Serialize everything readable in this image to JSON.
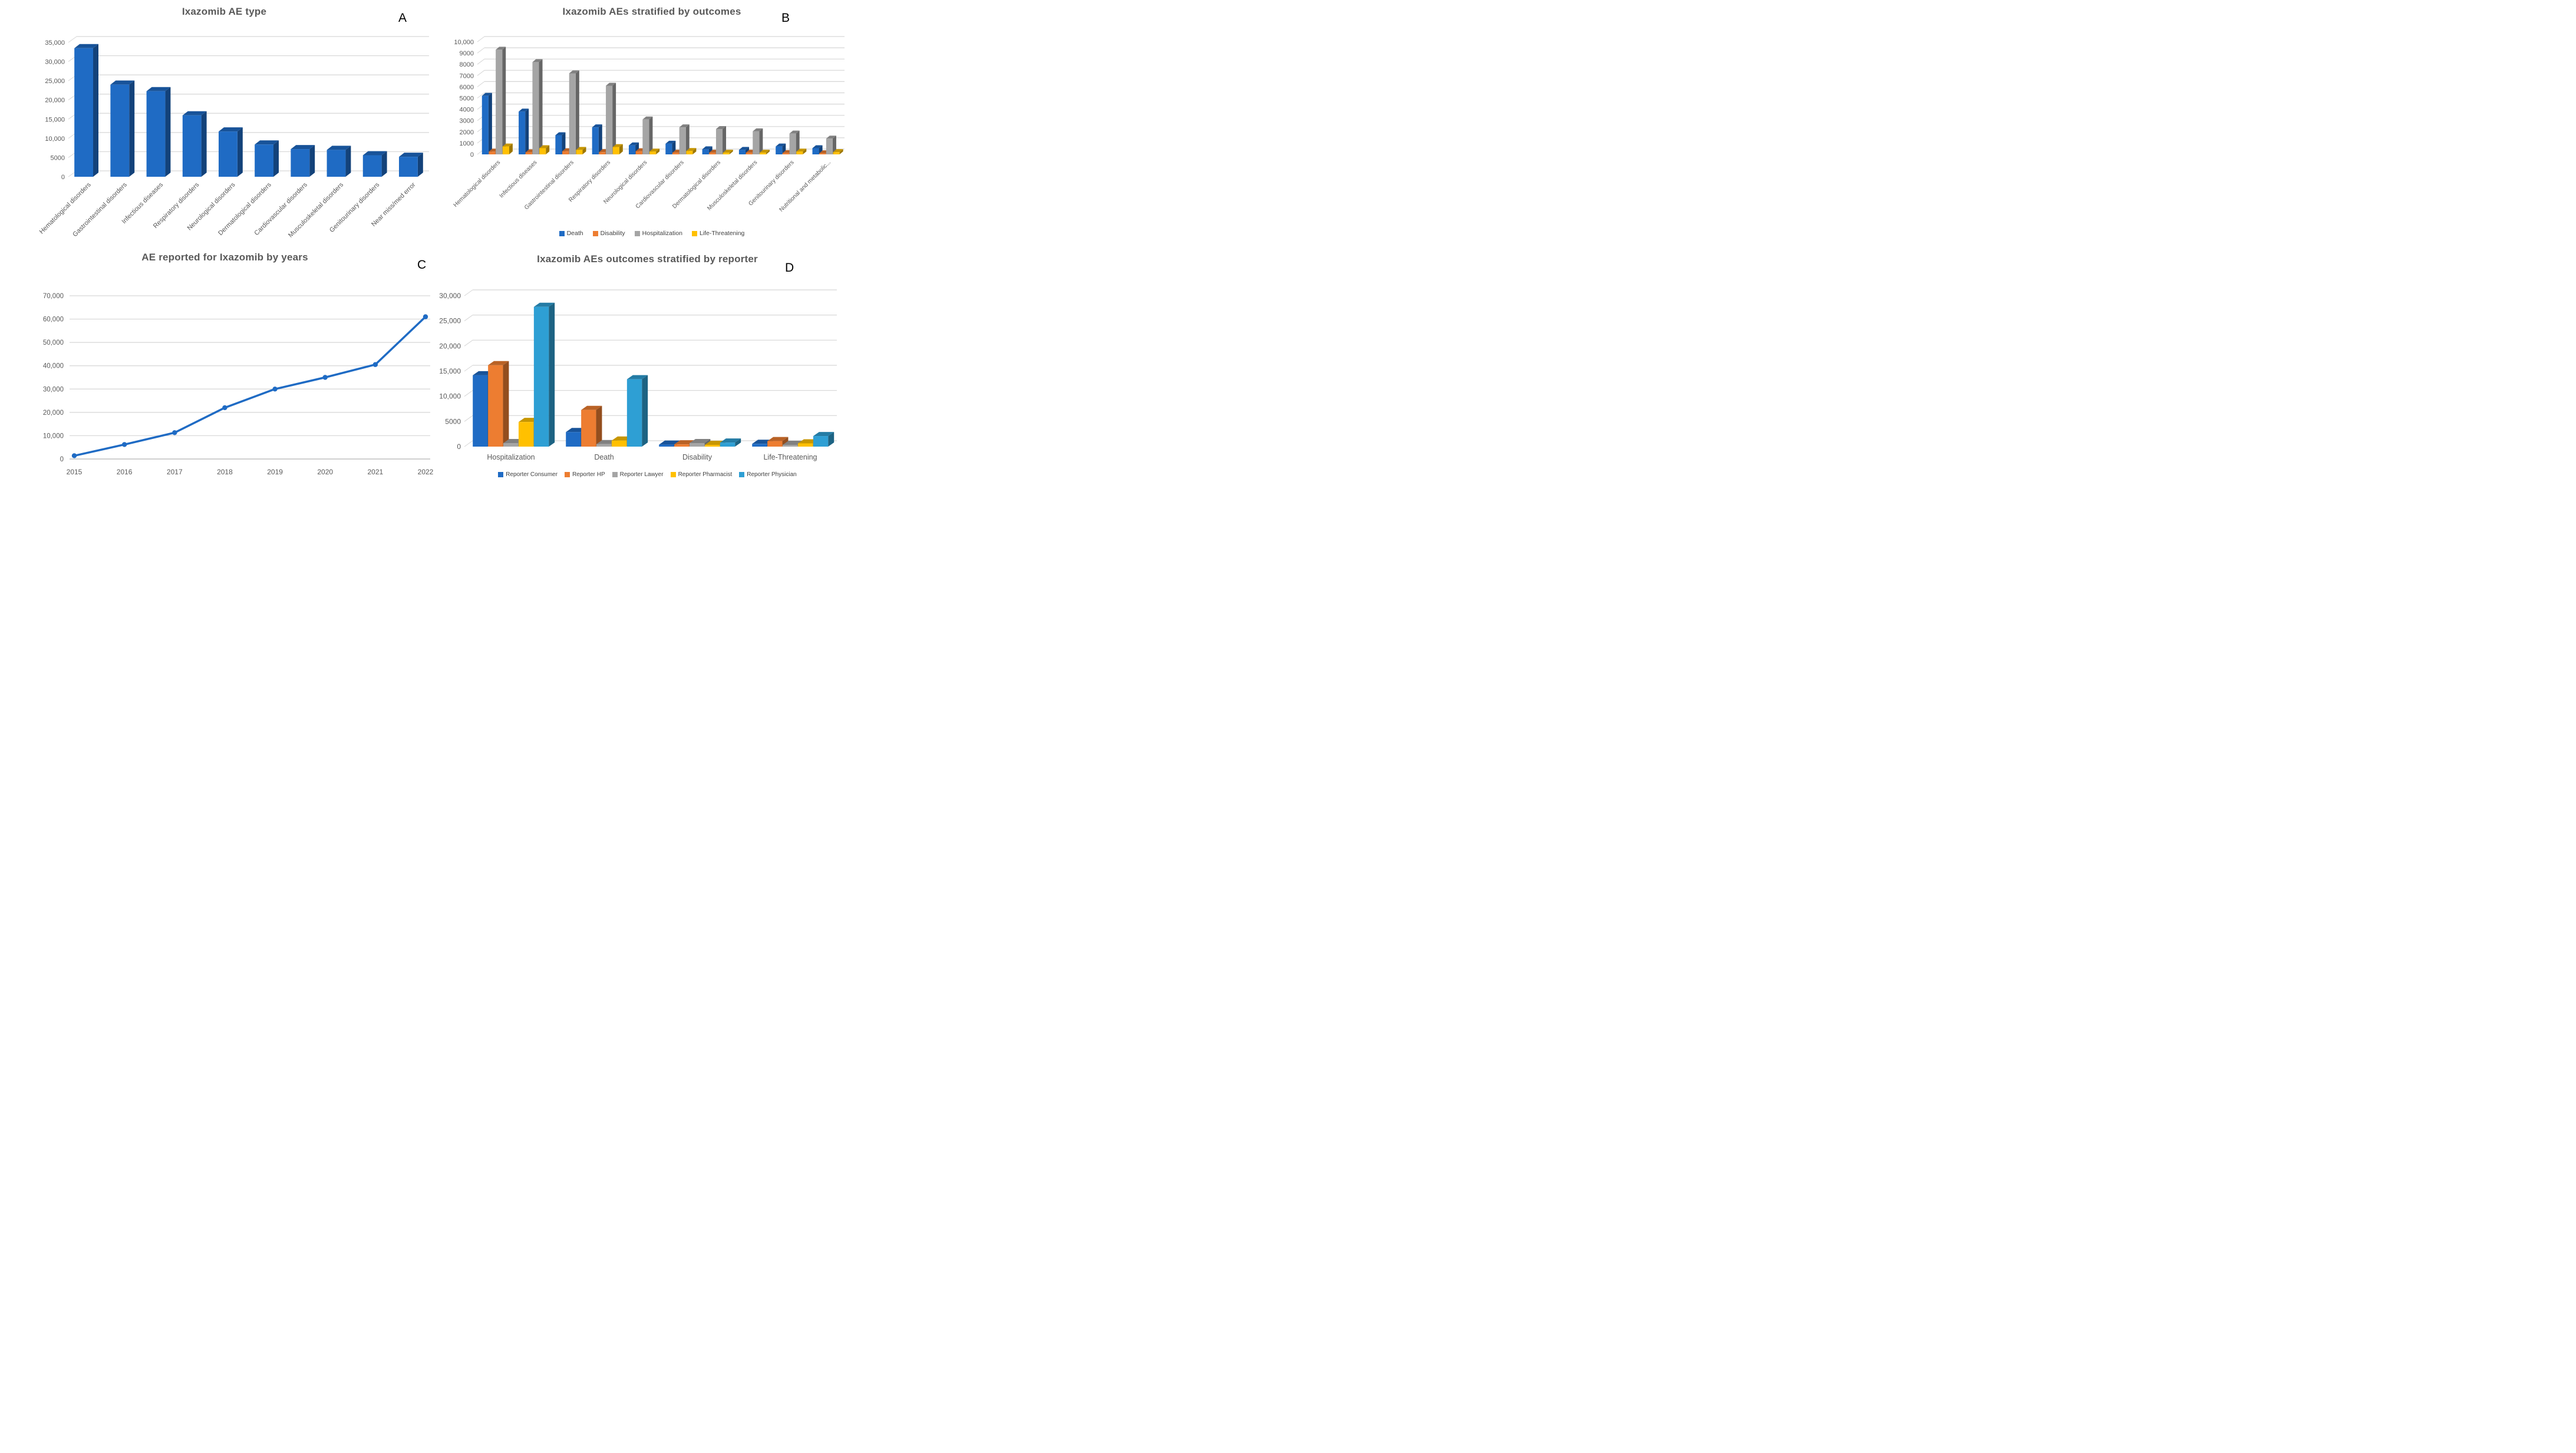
{
  "figure": {
    "background": "#FFFFFF",
    "panels": [
      {
        "id": "a",
        "letter": "A"
      },
      {
        "id": "b",
        "letter": "B"
      },
      {
        "id": "c",
        "letter": "C"
      },
      {
        "id": "d",
        "letter": "D"
      }
    ]
  },
  "colors": {
    "bar_blue": "#1F6BC4",
    "orange": "#ED7D31",
    "gray": "#A5A5A5",
    "yellow": "#FFC000",
    "light_blue": "#2E9FD4",
    "grid": "#D6D6D6",
    "axis_text": "#595959",
    "title_text": "#595959"
  },
  "chart_data": [
    {
      "type": "bar",
      "style": "3d",
      "title": "Ixazomib AE type",
      "xlabel": "",
      "ylabel": "",
      "grid": true,
      "legend_position": "none",
      "categories": [
        "Hematological disorders",
        "Gastrointestinal disorders",
        "Infectious diseases",
        "Respiratory disorders",
        "Neurological disorders",
        "Dermatological disorders",
        "Cardiovascular disorders",
        "Musculoskeletal disorders",
        "Genitourinary disorders",
        "Near miss/med error"
      ],
      "values": [
        33500,
        24000,
        22300,
        16000,
        11800,
        8400,
        7200,
        7000,
        5600,
        5200
      ],
      "bar_color": "#1F6BC4",
      "ylim": [
        0,
        35000
      ],
      "ytick_labels": [
        "0",
        "5000",
        "10,000",
        "15,000",
        "20,000",
        "25,000",
        "30,000",
        "35,000"
      ]
    },
    {
      "type": "bar",
      "style": "3d-grouped",
      "title": "Ixazomib AEs stratified by outcomes",
      "xlabel": "",
      "ylabel": "",
      "grid": true,
      "legend_position": "bottom",
      "categories": [
        "Hematological disorders",
        "Infectious diseases",
        "Gastrointestinal disorders",
        "Respiratory disorders",
        "Neurological disorders",
        "Cardiovascular disorders",
        "Dermatological disorders",
        "Musculoskeletal disorders",
        "Genitourinary disorders",
        "Nutritional and metabolic..."
      ],
      "series": [
        {
          "name": "Death",
          "color": "#1F6BC4",
          "values": [
            5200,
            3800,
            1700,
            2400,
            800,
            950,
            450,
            400,
            700,
            550
          ]
        },
        {
          "name": "Disability",
          "color": "#ED7D31",
          "values": [
            250,
            180,
            280,
            200,
            280,
            150,
            150,
            150,
            120,
            100
          ]
        },
        {
          "name": "Hospitalization",
          "color": "#A5A5A5",
          "values": [
            9300,
            8200,
            7200,
            6100,
            3100,
            2400,
            2250,
            2050,
            1850,
            1400
          ]
        },
        {
          "name": "Life-Threatening",
          "color": "#FFC000",
          "values": [
            700,
            550,
            400,
            650,
            250,
            300,
            150,
            150,
            250,
            200
          ]
        }
      ],
      "ylim": [
        0,
        10000
      ],
      "ytick_labels": [
        "0",
        "1000",
        "2000",
        "3000",
        "4000",
        "5000",
        "6000",
        "7000",
        "8000",
        "9000",
        "10,000"
      ]
    },
    {
      "type": "line",
      "title": "AE reported for Ixazomib by years",
      "xlabel": "",
      "ylabel": "",
      "grid": true,
      "legend_position": "none",
      "x": [
        "2015",
        "2016",
        "2017",
        "2018",
        "2019",
        "2020",
        "2021",
        "2022"
      ],
      "values": [
        1400,
        6200,
        11300,
        22000,
        30000,
        35000,
        40500,
        61000
      ],
      "line_color": "#1F6BC4",
      "ylim": [
        0,
        70000
      ],
      "ytick_labels": [
        "0",
        "10,000",
        "20,000",
        "30,000",
        "40,000",
        "50,000",
        "60,000",
        "70,000"
      ]
    },
    {
      "type": "bar",
      "style": "3d-grouped",
      "title": "Ixazomib AEs outcomes stratified by reporter",
      "xlabel": "",
      "ylabel": "",
      "grid": true,
      "legend_position": "bottom",
      "categories": [
        "Hospitalization",
        "Death",
        "Disability",
        "Life-Threatening"
      ],
      "series": [
        {
          "name": "Reporter Consumer",
          "color": "#1F6BC4",
          "values": [
            14200,
            2900,
            400,
            550
          ]
        },
        {
          "name": "Reporter HP",
          "color": "#ED7D31",
          "values": [
            16200,
            7300,
            450,
            1100
          ]
        },
        {
          "name": "Reporter Lawyer",
          "color": "#A5A5A5",
          "values": [
            700,
            500,
            700,
            350
          ]
        },
        {
          "name": "Reporter Pharmacist",
          "color": "#FFC000",
          "values": [
            4900,
            1200,
            350,
            650
          ]
        },
        {
          "name": "Reporter Physician",
          "color": "#2E9FD4",
          "values": [
            27800,
            13400,
            800,
            2100
          ]
        }
      ],
      "ylim": [
        0,
        30000
      ],
      "ytick_labels": [
        "0",
        "5000",
        "10,000",
        "15,000",
        "20,000",
        "25,000",
        "30,000"
      ]
    }
  ]
}
